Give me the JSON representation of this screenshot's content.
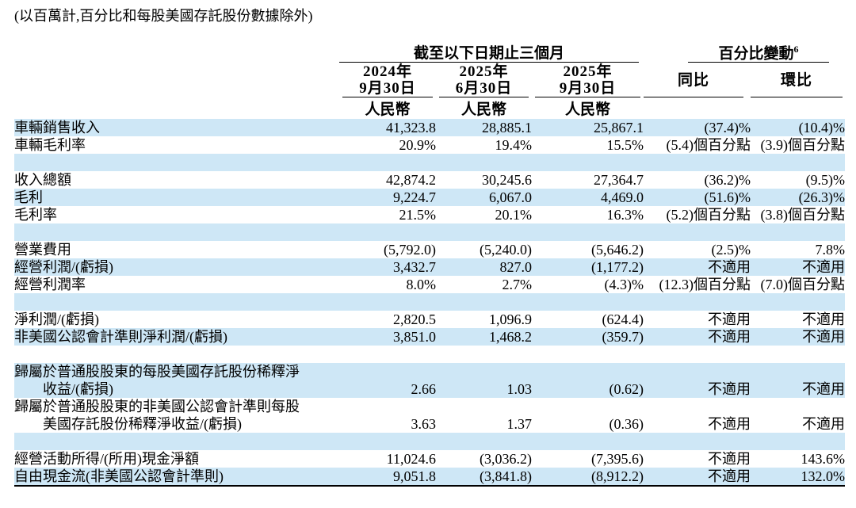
{
  "note": "(以百萬計,百分比和每股美國存託股份數據除外)",
  "colors": {
    "stripe": "#CEE7F6",
    "rule": "#000000",
    "text": "#000000",
    "background": "#FFFFFF"
  },
  "table": {
    "group_headers": {
      "periods": "截至以下日期止三個月",
      "pct_change": "百分比變動",
      "pct_change_sup": "6"
    },
    "columns": [
      {
        "line1": "2024年",
        "line2": "9月30日",
        "currency": "人民幣"
      },
      {
        "line1": "2025年",
        "line2": "6月30日",
        "currency": "人民幣"
      },
      {
        "line1": "2025年",
        "line2": "9月30日",
        "currency": "人民幣"
      },
      {
        "label": "同比"
      },
      {
        "label": "環比"
      }
    ],
    "rows": [
      {
        "label": "車輛銷售收入",
        "values": [
          "41,323.8",
          "28,885.1",
          "25,867.1",
          "(37.4)%",
          "(10.4)%"
        ],
        "bg": "blue"
      },
      {
        "label": "車輛毛利率",
        "values": [
          "20.9%",
          "19.4%",
          "15.5%",
          "(5.4)個百分點",
          "(3.9)個百分點"
        ],
        "bg": "white"
      },
      {
        "blank": true,
        "bg": "blue"
      },
      {
        "label": "收入總額",
        "values": [
          "42,874.2",
          "30,245.6",
          "27,364.7",
          "(36.2)%",
          "(9.5)%"
        ],
        "bg": "white"
      },
      {
        "label": "毛利",
        "values": [
          "9,224.7",
          "6,067.0",
          "4,469.0",
          "(51.6)%",
          "(26.3)%"
        ],
        "bg": "blue"
      },
      {
        "label": "毛利率",
        "values": [
          "21.5%",
          "20.1%",
          "16.3%",
          "(5.2)個百分點",
          "(3.8)個百分點"
        ],
        "bg": "white"
      },
      {
        "blank": true,
        "bg": "blue"
      },
      {
        "label": "營業費用",
        "values": [
          "(5,792.0)",
          "(5,240.0)",
          "(5,646.2)",
          "(2.5)%",
          "7.8%"
        ],
        "bg": "white"
      },
      {
        "label": "經營利潤/(虧損)",
        "values": [
          "3,432.7",
          "827.0",
          "(1,177.2)",
          "不適用",
          "不適用"
        ],
        "bg": "blue"
      },
      {
        "label": "經營利潤率",
        "values": [
          "8.0%",
          "2.7%",
          "(4.3)%",
          "(12.3)個百分點",
          "(7.0)個百分點"
        ],
        "bg": "white"
      },
      {
        "blank": true,
        "bg": "blue"
      },
      {
        "label": "淨利潤/(虧損)",
        "values": [
          "2,820.5",
          "1,096.9",
          "(624.4)",
          "不適用",
          "不適用"
        ],
        "bg": "white"
      },
      {
        "label": "非美國公認會計準則淨利潤/(虧損)",
        "values": [
          "3,851.0",
          "1,468.2",
          "(359.7)",
          "不適用",
          "不適用"
        ],
        "bg": "blue"
      },
      {
        "blank": true,
        "bg": "white"
      },
      {
        "label_line1": "歸屬於普通股股東的每股美國存託股份稀釋淨",
        "label_line2": "收益/(虧損)",
        "values": [
          "2.66",
          "1.03",
          "(0.62)",
          "不適用",
          "不適用"
        ],
        "bg": "blue"
      },
      {
        "label_line1": "歸屬於普通股股東的非美國公認會計準則每股",
        "label_line2": "美國存託股份稀釋淨收益/(虧損)",
        "values": [
          "3.63",
          "1.37",
          "(0.36)",
          "不適用",
          "不適用"
        ],
        "bg": "white"
      },
      {
        "blank": true,
        "bg": "blue"
      },
      {
        "label": "經營活動所得/(所用)現金淨額",
        "values": [
          "11,024.6",
          "(3,036.2)",
          "(7,395.6)",
          "不適用",
          "143.6%"
        ],
        "bg": "white"
      },
      {
        "label": "自由現金流(非美國公認會計準則)",
        "values": [
          "9,051.8",
          "(3,841.8)",
          "(8,912.2)",
          "不適用",
          "132.0%"
        ],
        "bg": "blue"
      }
    ]
  }
}
